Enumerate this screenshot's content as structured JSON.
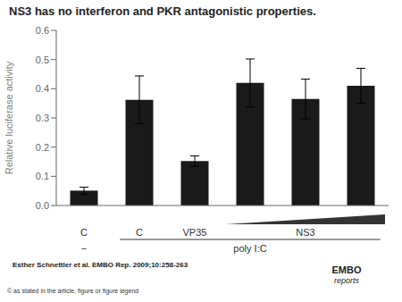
{
  "chart_data": {
    "type": "bar",
    "title": "NS3 has no interferon and PKR antagonistic properties.",
    "ylabel": "Relative luciferase activity",
    "categories": [
      "C",
      "C",
      "VP35",
      null,
      "NS3",
      null
    ],
    "values": [
      0.051,
      0.362,
      0.152,
      0.42,
      0.365,
      0.41
    ],
    "errors": [
      0.012,
      0.082,
      0.018,
      0.082,
      0.068,
      0.06
    ],
    "color": "#1a1a1a",
    "ylim": [
      0,
      0.6
    ],
    "yticks": [
      {
        "value": 0.0,
        "label": "0.0"
      },
      0.1,
      0.2,
      0.3,
      0.4,
      0.5,
      0.6
    ],
    "grid": false,
    "annotations": [
      "−",
      "poly I:C",
      "Esther Schnettler et al. EMBO Rep. 2009;10:258-263",
      "© as stated in the article, figure or figure legend",
      "EMBO",
      "reports"
    ]
  }
}
